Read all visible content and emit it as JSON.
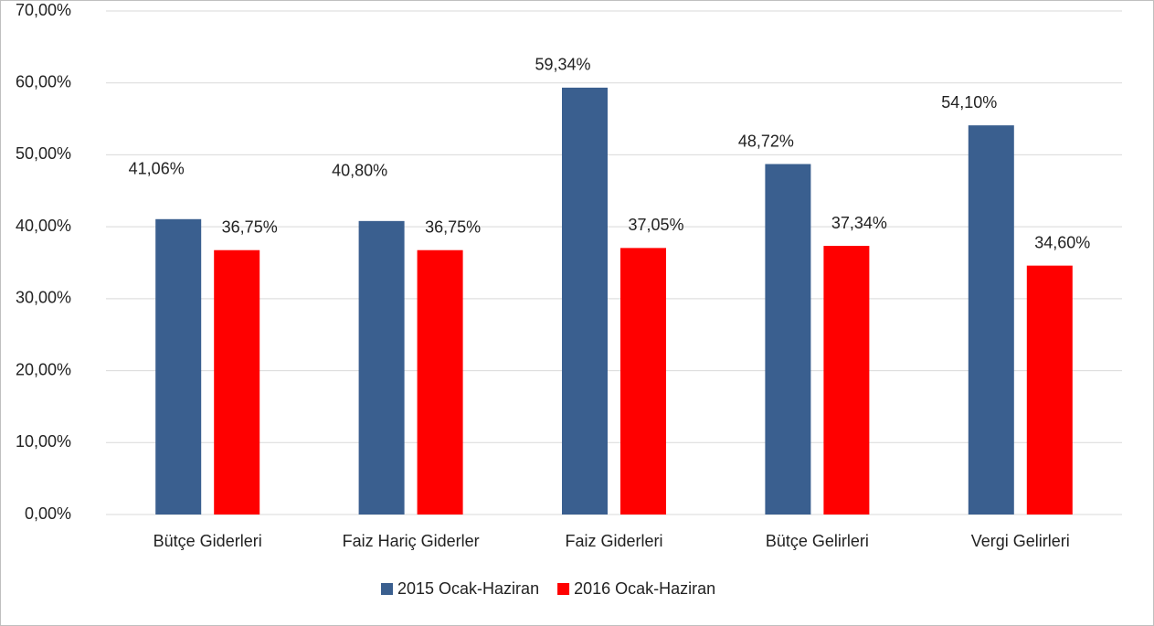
{
  "chart_data": {
    "type": "bar",
    "categories": [
      "Bütçe Giderleri",
      "Faiz Hariç Giderler",
      "Faiz Giderleri",
      "Bütçe Gelirleri",
      "Vergi Gelirleri"
    ],
    "series": [
      {
        "name": "2015 Ocak-Haziran",
        "color": "#3a5f8f",
        "values": [
          41.06,
          40.8,
          59.34,
          48.72,
          54.1
        ],
        "value_labels": [
          "41,06%",
          "40,80%",
          "59,34%",
          "48,72%",
          "54,10%"
        ]
      },
      {
        "name": "2016 Ocak-Haziran",
        "color": "#ff0000",
        "values": [
          36.75,
          36.75,
          37.05,
          37.34,
          34.6
        ],
        "value_labels": [
          "36,75%",
          "36,75%",
          "37,05%",
          "37,34%",
          "34,60%"
        ]
      }
    ],
    "ylim": [
      0,
      70
    ],
    "yticks": [
      {
        "value": 0,
        "label": "0,00%"
      },
      {
        "value": 10,
        "label": "10,00%"
      },
      {
        "value": 20,
        "label": "20,00%"
      },
      {
        "value": 30,
        "label": "30,00%"
      },
      {
        "value": 40,
        "label": "40,00%"
      },
      {
        "value": 50,
        "label": "50,00%"
      },
      {
        "value": 60,
        "label": "60,00%"
      },
      {
        "value": 70,
        "label": "70,00%"
      }
    ],
    "grid": true,
    "legend": "bottom"
  }
}
